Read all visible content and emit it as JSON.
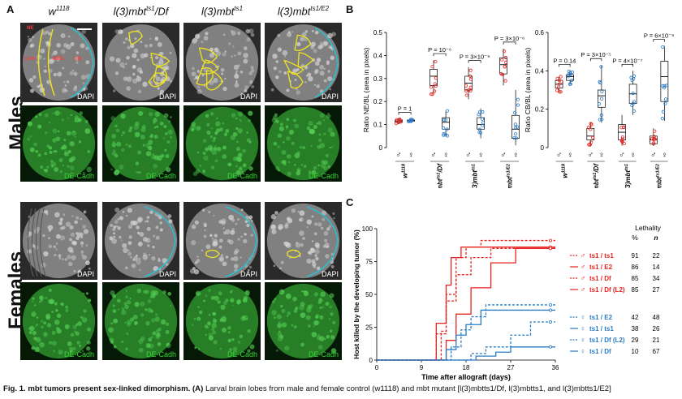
{
  "panel_a": {
    "letter": "A",
    "column_titles": [
      {
        "text": "w",
        "sup": "1118"
      },
      {
        "text": "l(3)mbt",
        "sup": "ts1",
        "suffix": "/Df"
      },
      {
        "text": "l(3)mbt",
        "sup": "ts1",
        "suffix": ""
      },
      {
        "text": "l(3)mbt",
        "sup": "ts1/E2",
        "suffix": ""
      }
    ],
    "sex_labels": [
      "Males",
      "Females"
    ],
    "stain_labels": {
      "dapi": "DAPI",
      "decad": "DE-Cadh"
    },
    "region_labels": [
      "NE",
      "LAN",
      "MED",
      "CB"
    ]
  },
  "panel_b": {
    "letter": "B",
    "charts": [
      {
        "ylabel": "Ratio NE/BL (area in pixels)",
        "ylim": [
          0,
          0.5
        ],
        "yticks": [
          "0",
          "0.1",
          "0.2",
          "0.3",
          "0.4",
          "0.5"
        ],
        "genotypes": [
          {
            "name": "w",
            "sup": "1118"
          },
          {
            "name": "l(3)mbt",
            "sup": "ts1",
            "suffix": "/Df"
          },
          {
            "name": "l(3)mbt",
            "sup": "ts1",
            "suffix": ""
          },
          {
            "name": "l(3)mbt",
            "sup": "ts1/E2",
            "suffix": ""
          }
        ],
        "pvalues": [
          "P = 1",
          "P = 10⁻⁶",
          "P = 3×10⁻⁹",
          "P = 3×10⁻⁶"
        ],
        "boxes": [
          {
            "sex": "male",
            "q1": 0.11,
            "median": 0.115,
            "q3": 0.12,
            "min": 0.105,
            "max": 0.125
          },
          {
            "sex": "female",
            "q1": 0.115,
            "median": 0.118,
            "q3": 0.12,
            "min": 0.112,
            "max": 0.123
          },
          {
            "sex": "male",
            "q1": 0.27,
            "median": 0.31,
            "q3": 0.34,
            "min": 0.23,
            "max": 0.38
          },
          {
            "sex": "female",
            "q1": 0.08,
            "median": 0.11,
            "q3": 0.13,
            "min": 0.05,
            "max": 0.16
          },
          {
            "sex": "male",
            "q1": 0.25,
            "median": 0.28,
            "q3": 0.31,
            "min": 0.21,
            "max": 0.35
          },
          {
            "sex": "female",
            "q1": 0.08,
            "median": 0.1,
            "q3": 0.13,
            "min": 0.04,
            "max": 0.17
          },
          {
            "sex": "male",
            "q1": 0.32,
            "median": 0.36,
            "q3": 0.39,
            "min": 0.27,
            "max": 0.43
          },
          {
            "sex": "female",
            "q1": 0.04,
            "median": 0.08,
            "q3": 0.14,
            "min": 0.01,
            "max": 0.25
          }
        ]
      },
      {
        "ylabel": "Ratio CB/BL (area in pixels)",
        "ylim": [
          0,
          0.6
        ],
        "yticks": [
          "0",
          "0.2",
          "0.4",
          "0.6"
        ],
        "genotypes": [
          {
            "name": "w",
            "sup": "1118"
          },
          {
            "name": "l(3)mbt",
            "sup": "ts1",
            "suffix": "/Df"
          },
          {
            "name": "l(3)mbt",
            "sup": "ts1",
            "suffix": ""
          },
          {
            "name": "l(3)mbt",
            "sup": "ts1/E2",
            "suffix": ""
          }
        ],
        "pvalues": [
          "P = 0.14",
          "P = 3×10⁻⁵",
          "P = 4×10⁻⁷",
          "P = 6×10⁻⁹"
        ],
        "boxes": [
          {
            "sex": "male",
            "q1": 0.31,
            "median": 0.33,
            "q3": 0.35,
            "min": 0.29,
            "max": 0.37
          },
          {
            "sex": "female",
            "q1": 0.35,
            "median": 0.37,
            "q3": 0.38,
            "min": 0.33,
            "max": 0.4
          },
          {
            "sex": "male",
            "q1": 0.04,
            "median": 0.06,
            "q3": 0.1,
            "min": 0.01,
            "max": 0.13
          },
          {
            "sex": "female",
            "q1": 0.21,
            "median": 0.27,
            "q3": 0.3,
            "min": 0.13,
            "max": 0.43
          },
          {
            "sex": "male",
            "q1": 0.04,
            "median": 0.08,
            "q3": 0.12,
            "min": 0.01,
            "max": 0.17
          },
          {
            "sex": "female",
            "q1": 0.23,
            "median": 0.28,
            "q3": 0.33,
            "min": 0.17,
            "max": 0.4
          },
          {
            "sex": "male",
            "q1": 0.02,
            "median": 0.04,
            "q3": 0.06,
            "min": 0.01,
            "max": 0.1
          },
          {
            "sex": "female",
            "q1": 0.24,
            "median": 0.37,
            "q3": 0.45,
            "min": 0.14,
            "max": 0.53
          }
        ]
      }
    ]
  },
  "panel_c": {
    "letter": "C",
    "ylabel": "Host killed by the developing tumor (%)",
    "xlabel": "Time after allograft (days)",
    "xticks": [
      "0",
      "9",
      "18",
      "27",
      "36"
    ],
    "yticks": [
      "0",
      "25",
      "50",
      "75",
      "100"
    ],
    "table_title": "Lethality",
    "table_headers": [
      "%",
      "n"
    ],
    "colors": {
      "male": "#e8231e",
      "female": "#2a7bc4"
    },
    "series": [
      {
        "name": "ts1 / ts1",
        "sex": "male",
        "pct": "91",
        "n": "22",
        "x": [
          0,
          11,
          13,
          14,
          16,
          18,
          21,
          36
        ],
        "y": [
          0,
          0,
          22,
          50,
          78,
          86,
          91,
          91
        ]
      },
      {
        "name": "ts1 / E2",
        "sex": "male",
        "pct": "86",
        "n": "14",
        "x": [
          0,
          11,
          12,
          14,
          15,
          17,
          20,
          36
        ],
        "y": [
          0,
          0,
          28,
          57,
          78,
          86,
          86,
          86
        ]
      },
      {
        "name": "ts1 / Df",
        "sex": "male",
        "pct": "85",
        "n": "34",
        "x": [
          0,
          10,
          12,
          14,
          16,
          19,
          23,
          36
        ],
        "y": [
          0,
          0,
          20,
          45,
          65,
          78,
          85,
          85
        ]
      },
      {
        "name": "ts1 / Df (L2)",
        "sex": "male",
        "pct": "85",
        "n": "27",
        "x": [
          0,
          12,
          14,
          16,
          19,
          23,
          28,
          36
        ],
        "y": [
          0,
          0,
          15,
          35,
          55,
          74,
          85,
          85
        ]
      },
      {
        "name": "ts1 / E2",
        "sex": "female",
        "pct": "42",
        "n": "48",
        "x": [
          0,
          13,
          15,
          17,
          19,
          22,
          36
        ],
        "y": [
          0,
          0,
          10,
          23,
          33,
          42,
          42
        ]
      },
      {
        "name": "ts1 / ts1",
        "sex": "female",
        "pct": "38",
        "n": "26",
        "x": [
          0,
          12,
          14,
          16,
          18,
          21,
          36
        ],
        "y": [
          0,
          0,
          8,
          19,
          27,
          38,
          38
        ]
      },
      {
        "name": "ts1 / Df (L2)",
        "sex": "female",
        "pct": "29",
        "n": "21",
        "x": [
          0,
          16,
          19,
          22,
          27,
          31,
          36
        ],
        "y": [
          0,
          0,
          5,
          10,
          19,
          29,
          29
        ]
      },
      {
        "name": "ts1 / Df",
        "sex": "female",
        "pct": "10",
        "n": "67",
        "x": [
          0,
          17,
          20,
          24,
          27,
          36
        ],
        "y": [
          0,
          0,
          3,
          6,
          10,
          10
        ]
      }
    ]
  },
  "caption": {
    "label": "Fig. 1.",
    "bold_text": " mbt tumors present sex-linked dimorphism.",
    "bold_a": " (A)",
    "text": " Larval brain lobes from male and female control (w1118) and mbt mutant [l(3)mbtts1/Df, l(3)mbtts1, and l(3)mbtts1/E2]"
  }
}
